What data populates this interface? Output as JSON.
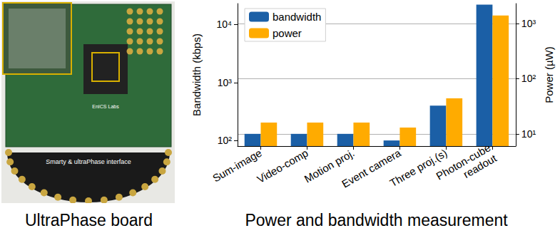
{
  "chart_data": {
    "type": "bar",
    "categories": [
      "Sum-image",
      "Video-comp",
      "Motion proj.",
      "Event camera",
      "Three proj.(s)",
      "Photon-cube\nreadout"
    ],
    "series": [
      {
        "name": "bandwidth",
        "color": "#1b5fa6",
        "axis": "y",
        "values": [
          130,
          130,
          130,
          100,
          400,
          22000
        ]
      },
      {
        "name": "power",
        "color": "#ffab00",
        "axis": "y2",
        "values": [
          16,
          16,
          16,
          13,
          44,
          1400
        ]
      }
    ],
    "ylabel": "Bandwidth (kbps)",
    "y2label": "Power (µW)",
    "log": "y",
    "ylim": [
      80,
      23000
    ],
    "yticks": [
      {
        "value": 100,
        "label": "10²"
      },
      {
        "value": 1000,
        "label": "10³"
      },
      {
        "value": 10000,
        "label": "10⁴"
      }
    ],
    "y2lim": [
      6,
      2300
    ],
    "y2ticks": [
      {
        "value": 10,
        "label": "10¹"
      },
      {
        "value": 100,
        "label": "10²"
      },
      {
        "value": 1000,
        "label": "10³"
      }
    ],
    "grid": true,
    "legend": "upper left"
  },
  "photo": {
    "board_text": "EnICS Labs",
    "interface_text": "Smarty & ultraPhase interface"
  },
  "captions": {
    "left": "UltraPhase board",
    "right": "Power and bandwidth measurement"
  }
}
